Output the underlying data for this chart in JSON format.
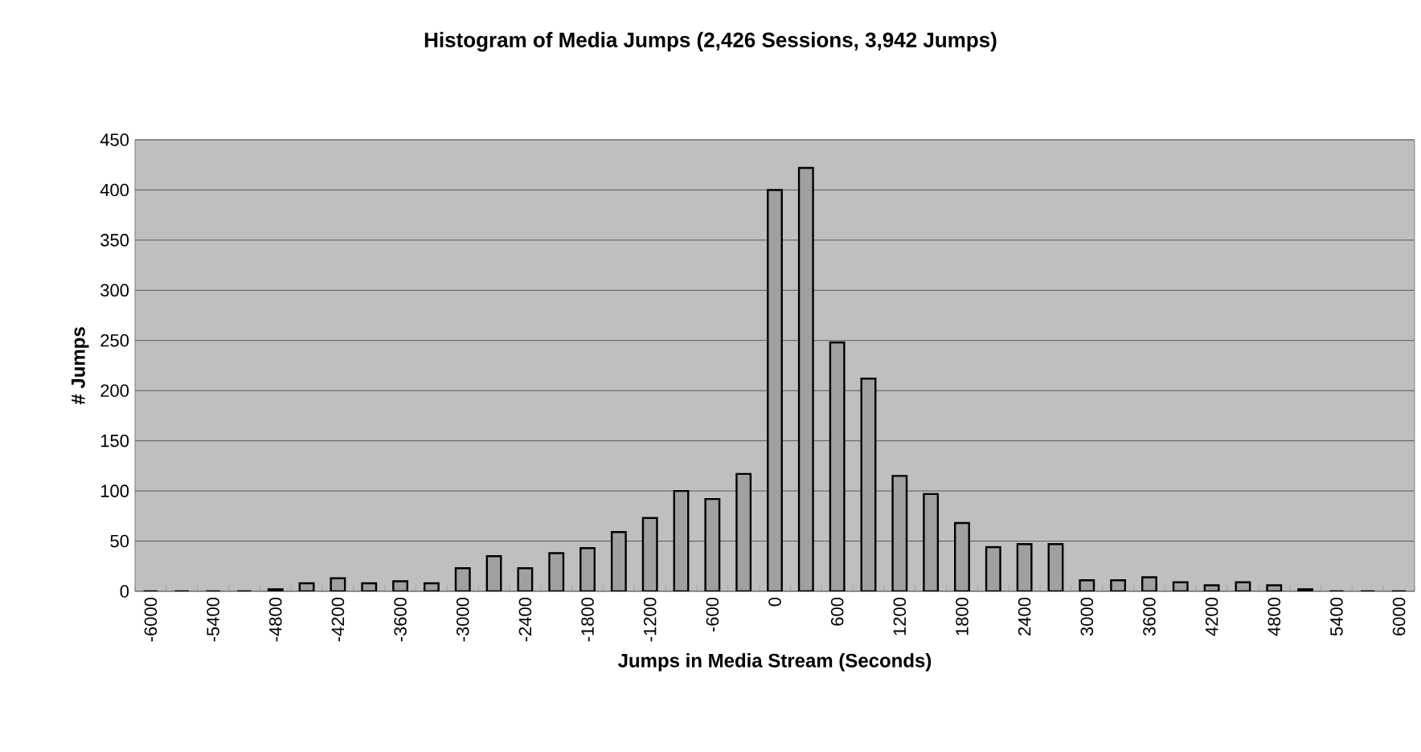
{
  "chart_data": {
    "type": "bar",
    "title": "Histogram of Media  Jumps (2,426 Sessions, 3,942 Jumps)",
    "xlabel": "Jumps  in Media Stream (Seconds)",
    "ylabel": "# Jumps",
    "categories": [
      "-6000",
      null,
      "-5400",
      null,
      "-4800",
      null,
      "-4200",
      null,
      "-3600",
      null,
      "-3000",
      null,
      "-2400",
      null,
      "-1800",
      null,
      "-1200",
      null,
      "-600",
      null,
      "0",
      null,
      "600",
      null,
      "1200",
      null,
      "1800",
      null,
      "2400",
      null,
      "3000",
      null,
      "3600",
      null,
      "4200",
      null,
      "4800",
      null,
      "5400",
      null,
      "6000"
    ],
    "values": [
      0,
      0,
      0,
      0,
      2,
      8,
      13,
      8,
      10,
      8,
      23,
      35,
      23,
      38,
      43,
      59,
      73,
      100,
      92,
      117,
      400,
      422,
      248,
      212,
      115,
      97,
      68,
      44,
      47,
      47,
      11,
      11,
      14,
      9,
      6,
      9,
      6,
      2,
      0,
      0,
      0
    ],
    "color": "#a0a0a0",
    "ylim": [
      0,
      450
    ],
    "yticks": [
      0,
      50,
      100,
      150,
      200,
      250,
      300,
      350,
      400,
      450
    ],
    "grid": "y"
  }
}
